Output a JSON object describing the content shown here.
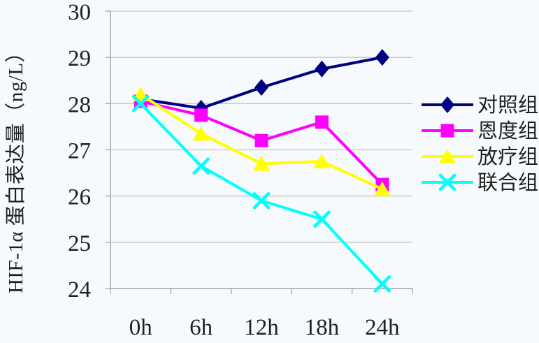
{
  "chart_data": {
    "type": "line",
    "title": "",
    "xlabel": "",
    "ylabel": "HIF-1α 蛋白表达量（ng/L）",
    "categories": [
      "0h",
      "6h",
      "12h",
      "18h",
      "24h"
    ],
    "ylim": [
      24,
      30
    ],
    "yticks": [
      24,
      25,
      26,
      27,
      28,
      29,
      30
    ],
    "grid": "horizontal-gridlines",
    "legend_position": "right-middle",
    "series": [
      {
        "name": "对照组",
        "marker": "diamond",
        "color": "#000080",
        "values": [
          28.1,
          27.9,
          28.35,
          28.75,
          29.0
        ]
      },
      {
        "name": "恩度组",
        "marker": "square",
        "color": "#FF00FF",
        "values": [
          28.05,
          27.75,
          27.2,
          27.6,
          26.25
        ]
      },
      {
        "name": "放疗组",
        "marker": "triangle",
        "color": "#FFFF00",
        "values": [
          28.2,
          27.35,
          26.7,
          26.75,
          26.15
        ]
      },
      {
        "name": "联合组",
        "marker": "x",
        "color": "#00FFFF",
        "values": [
          28.0,
          26.65,
          25.9,
          25.5,
          24.1
        ]
      }
    ]
  },
  "theme": {
    "background": "#f6fafc",
    "gridline": "#c6c6c6",
    "axis": "#a3a3a3",
    "text": "#1f1f1f"
  }
}
